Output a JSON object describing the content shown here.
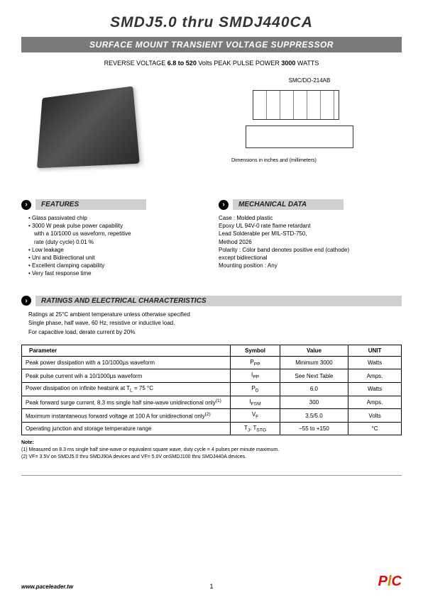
{
  "title": "SMDJ5.0 thru SMDJ440CA",
  "subtitle": "SURFACE MOUNT TRANSIENT VOLTAGE SUPPRESSOR",
  "specs_line_pre": "REVERSE VOLTAGE ",
  "specs_voltage": "6.8 to 520",
  "specs_volts": " Volts    PEAK PULSE POWER ",
  "specs_power": "3000",
  "specs_watts": " WATTS",
  "package_label": "SMC/DO-214AB",
  "dim_caption": "Dimensions in inches and (millimeters)",
  "sections": {
    "features": "FEATURES",
    "mechanical": "MECHANICAL DATA",
    "ratings": "RATINGS AND ELECTRICAL CHARACTERISTICS"
  },
  "features": [
    "Glass passivated chip",
    "3000 W peak pulse power capability",
    "with a 10/1000 us  waveform, repetitive",
    "rate (duty cycle) 0.01 %",
    "Low leakage",
    "Uni and Bidirectional unit",
    "Excellent clamping capability",
    "Very fast response time"
  ],
  "mechanical": {
    "l1": "Case :  Molded plastic",
    "l2": "Epoxy   UL 94V-0 rate flame retardant",
    "l3": "Lead   Solderable per MIL-STD-750,",
    "l4": "          Method 2026",
    "l5": "Polarity : Color band denotes  positive end (cathode)",
    "l6": "          except bidirectional",
    "l7": "Mounting position : Any"
  },
  "ratings_intro": {
    "l1": "Ratings at 25°C ambient temperature unless otherwise specified",
    "l2": "Single phase, half wave, 60 Hz, resistive or inductive load.",
    "l3": "For capacitive load, derate current by 20%"
  },
  "table": {
    "headers": [
      "Parameter",
      "Symbol",
      "Value",
      "UNIT"
    ],
    "rows": [
      [
        "Peak power dissipation with a 10/1000µs waveform",
        "P<sub>PP</sub>",
        "Minimum 3000",
        "Watts"
      ],
      [
        "Peak pulse current wih a 10/1000µs waveform",
        "I<sub>PP</sub>",
        "See Next Table",
        "Amps."
      ],
      [
        "Power dissipation on infinite heatsink at T<sub>L</sub> = 75 °C",
        "P<sub>D</sub>",
        "6.0",
        "Watts"
      ],
      [
        "Peak forward surge current, 8.3 ms single half sine-wave unidirectional only<sup>(1)</sup>",
        "I<sub>FSM</sub>",
        "300",
        "Amps."
      ],
      [
        "Maximum instantaneous forward voltage at 100 A for unidirectional only<sup>(2)</sup>",
        "V<sub>F</sub>",
        "3.5/5.0",
        "Volts"
      ],
      [
        "Operating junction and storage temperature range",
        "T<sub>J</sub>, T<sub>STG</sub>",
        "−55 to +150",
        "°C"
      ]
    ]
  },
  "notes": {
    "title": "Note:",
    "n1": "(1) Measured on 8.3 ms single half sine-wave or equivalent square wave, duty cycle = 4 pulses per minute maximum.",
    "n2": "(2) VF= 3.5V on SMDJ5.0 thru SMDJ90A devices and VF= 5.0V onSMDJ100 thru SMDJ440A devices."
  },
  "footer": {
    "url": "www.paceleader.tw",
    "page": "1"
  }
}
